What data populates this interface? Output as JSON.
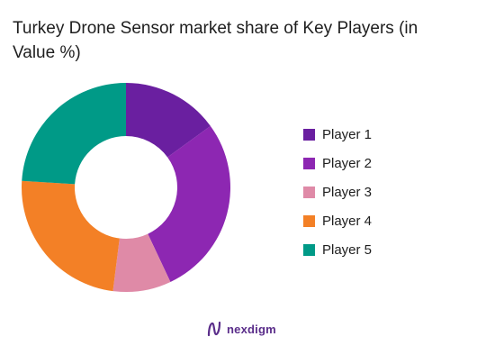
{
  "chart_data": {
    "type": "pie",
    "title": "Turkey Drone Sensor market share of Key Players (in Value %)",
    "donut": true,
    "legend_position": "right",
    "series": [
      {
        "name": "Player 1",
        "value": 15,
        "color": "#6a1fa0"
      },
      {
        "name": "Player 2",
        "value": 28,
        "color": "#8d27b2"
      },
      {
        "name": "Player 3",
        "value": 9,
        "color": "#df8aa7"
      },
      {
        "name": "Player 4",
        "value": 24,
        "color": "#f38026"
      },
      {
        "name": "Player 5",
        "value": 24,
        "color": "#009a87"
      }
    ]
  },
  "brand": {
    "name": "nexdigm",
    "icon": "nexdigm-logo-icon",
    "color": "#5a2d8a"
  }
}
